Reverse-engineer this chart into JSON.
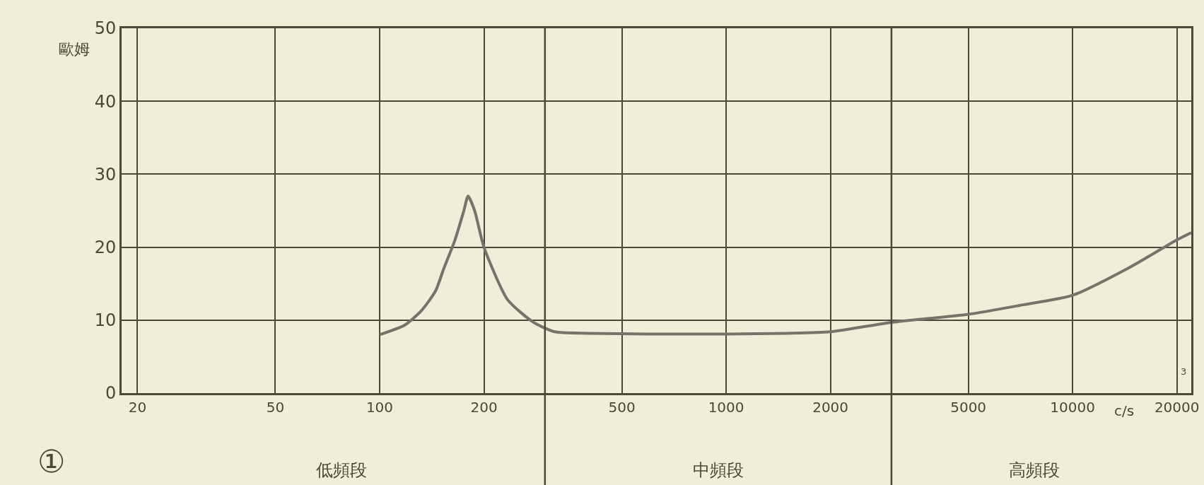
{
  "chart_data": {
    "type": "line",
    "xlabel": "c/s",
    "ylabel": "歐姆",
    "x": [
      100,
      118,
      132,
      145,
      153,
      165,
      175,
      180,
      188,
      200,
      234,
      278,
      320,
      400,
      600,
      1000,
      1500,
      2000,
      3000,
      5000,
      7000,
      10000,
      14700,
      20000,
      22000
    ],
    "series": [
      {
        "color": "#77726a",
        "values": [
          8,
          9.3,
          11.3,
          14,
          17,
          21,
          25,
          27,
          25,
          20,
          12.8,
          9.7,
          8.4,
          8.2,
          8.1,
          8.1,
          8.2,
          8.4,
          9.7,
          10.8,
          12,
          13.4,
          17.3,
          21,
          22
        ]
      }
    ],
    "log": "x",
    "xlim": [
      18,
      22000
    ],
    "xticks": [
      20,
      50,
      100,
      200,
      500,
      1000,
      2000,
      5000,
      10000,
      20000
    ],
    "ylim": [
      0,
      50
    ],
    "yticks": [
      0,
      10,
      20,
      30,
      40,
      50
    ],
    "grid": true,
    "line_style": "solid",
    "marker": "none",
    "ref_lines": [
      {
        "axis": "x",
        "value": 300
      },
      {
        "axis": "x",
        "value": 3000
      }
    ],
    "annotations": [
      "①",
      "3",
      "低頻段",
      "中頻段",
      "高頻段"
    ]
  }
}
